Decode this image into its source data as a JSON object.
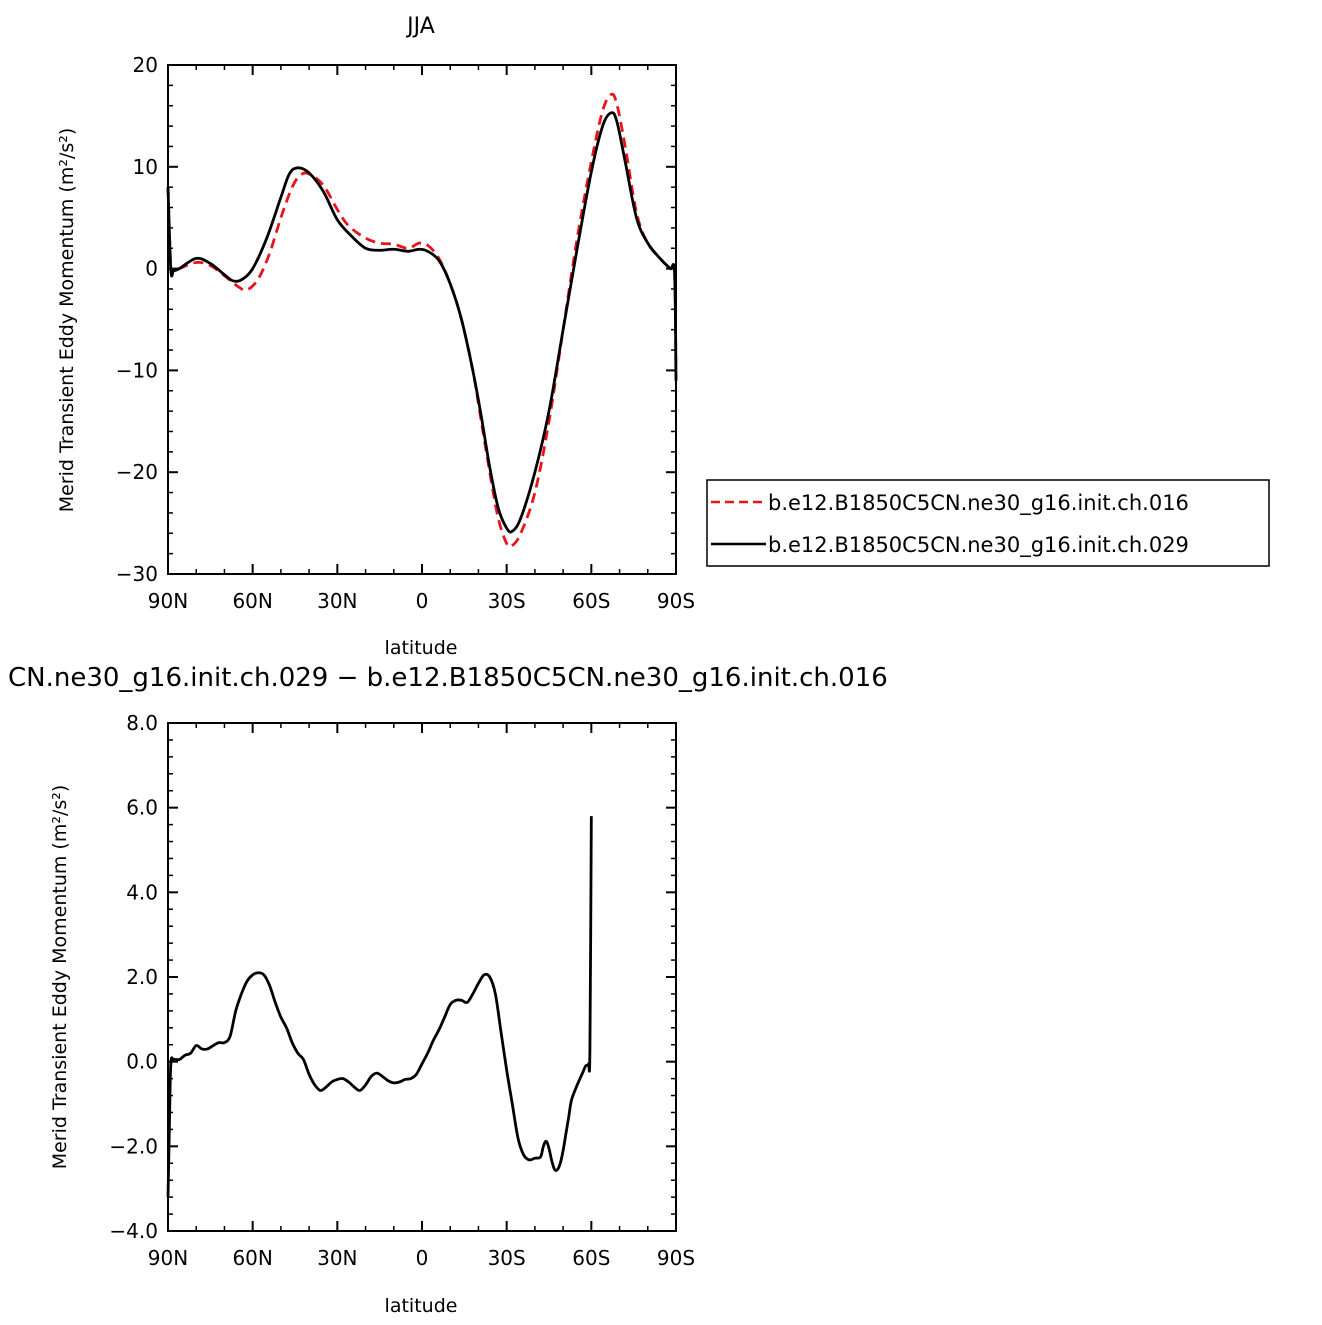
{
  "chart_data": [
    {
      "type": "line",
      "title": "JJA",
      "xlabel": "latitude",
      "ylabel": "Merid Transient Eddy Momentum (m²/s²)",
      "xlim": [
        90,
        -90
      ],
      "ylim": [
        -30,
        20
      ],
      "x_ticks": [
        90,
        60,
        30,
        0,
        -30,
        -60,
        -90
      ],
      "x_tick_labels": [
        "90N",
        "60N",
        "30N",
        "0",
        "30S",
        "60S",
        "90S"
      ],
      "y_ticks": [
        -30,
        -20,
        -10,
        0,
        10,
        20
      ],
      "y_tick_labels": [
        "−30",
        "−20",
        "−10",
        "0",
        "10",
        "20"
      ],
      "legend_position": "right",
      "series": [
        {
          "name": "b.e12.B1850C5CN.ne30_g16.init.ch.016",
          "color": "#e8141c",
          "dash": "dashed",
          "points": [
            [
              90,
              8
            ],
            [
              89,
              0.2
            ],
            [
              88,
              -0.2
            ],
            [
              86,
              0
            ],
            [
              80,
              0.6
            ],
            [
              75,
              0.3
            ],
            [
              70,
              -0.7
            ],
            [
              65,
              -1.8
            ],
            [
              62,
              -2.1
            ],
            [
              58,
              -1
            ],
            [
              54,
              1.5
            ],
            [
              50,
              5
            ],
            [
              46,
              8
            ],
            [
              43,
              9.2
            ],
            [
              40,
              9.3
            ],
            [
              35,
              8.2
            ],
            [
              30,
              5.8
            ],
            [
              26,
              4.2
            ],
            [
              20,
              3
            ],
            [
              15,
              2.5
            ],
            [
              10,
              2.4
            ],
            [
              5,
              2
            ],
            [
              1,
              2.5
            ],
            [
              -2,
              2.3
            ],
            [
              -6,
              1
            ],
            [
              -10,
              -1.5
            ],
            [
              -14,
              -5
            ],
            [
              -18,
              -10
            ],
            [
              -21,
              -15
            ],
            [
              -24,
              -20
            ],
            [
              -27,
              -24.5
            ],
            [
              -30,
              -27
            ],
            [
              -32,
              -27.2
            ],
            [
              -35,
              -26
            ],
            [
              -40,
              -22
            ],
            [
              -45,
              -15
            ],
            [
              -50,
              -6
            ],
            [
              -55,
              3
            ],
            [
              -60,
              10.5
            ],
            [
              -64,
              15.5
            ],
            [
              -67,
              17.1
            ],
            [
              -69,
              16.2
            ],
            [
              -72,
              12
            ],
            [
              -76,
              5.5
            ],
            [
              -80,
              2.5
            ],
            [
              -85,
              0.8
            ],
            [
              -88,
              0
            ],
            [
              -89.5,
              -0.5
            ],
            [
              -90,
              -11
            ]
          ]
        },
        {
          "name": "b.e12.B1850C5CN.ne30_g16.init.ch.029",
          "color": "#000000",
          "dash": "solid",
          "points": [
            [
              90,
              8
            ],
            [
              89,
              -0.1
            ],
            [
              88,
              -0.2
            ],
            [
              86,
              0
            ],
            [
              80,
              1
            ],
            [
              75,
              0.5
            ],
            [
              70,
              -0.6
            ],
            [
              67,
              -1.2
            ],
            [
              64,
              -1.1
            ],
            [
              60,
              0
            ],
            [
              55,
              3
            ],
            [
              50,
              7
            ],
            [
              47,
              9.3
            ],
            [
              44,
              9.9
            ],
            [
              40,
              9.4
            ],
            [
              35,
              7.6
            ],
            [
              30,
              4.8
            ],
            [
              25,
              3.2
            ],
            [
              20,
              2
            ],
            [
              15,
              1.8
            ],
            [
              10,
              1.9
            ],
            [
              5,
              1.7
            ],
            [
              1,
              1.9
            ],
            [
              -2,
              1.7
            ],
            [
              -6,
              0.8
            ],
            [
              -10,
              -1.5
            ],
            [
              -14,
              -5
            ],
            [
              -18,
              -10
            ],
            [
              -21,
              -14.5
            ],
            [
              -24,
              -19.5
            ],
            [
              -27,
              -23.5
            ],
            [
              -30,
              -25.5
            ],
            [
              -32,
              -25.8
            ],
            [
              -35,
              -24.5
            ],
            [
              -40,
              -20
            ],
            [
              -45,
              -14
            ],
            [
              -50,
              -6
            ],
            [
              -55,
              2
            ],
            [
              -60,
              9.5
            ],
            [
              -64,
              14
            ],
            [
              -67,
              15.3
            ],
            [
              -69,
              14.5
            ],
            [
              -72,
              10.5
            ],
            [
              -76,
              5
            ],
            [
              -80,
              2.5
            ],
            [
              -85,
              0.8
            ],
            [
              -88,
              0
            ],
            [
              -89.5,
              -0.5
            ],
            [
              -90,
              -11
            ]
          ]
        }
      ]
    },
    {
      "type": "line",
      "title": "CN.ne30_g16.init.ch.029 − b.e12.B1850C5CN.ne30_g16.init.ch.016",
      "xlabel": "latitude",
      "ylabel": "Merid Transient Eddy Momentum (m²/s²)",
      "xlim": [
        90,
        -90
      ],
      "ylim": [
        -4,
        8
      ],
      "x_ticks": [
        90,
        60,
        30,
        0,
        -30,
        -60,
        -90
      ],
      "x_tick_labels": [
        "90N",
        "60N",
        "30N",
        "0",
        "30S",
        "60S",
        "90S"
      ],
      "y_ticks": [
        -4,
        -2,
        0,
        2,
        4,
        6,
        8
      ],
      "y_tick_labels": [
        "−4.0",
        "−2.0",
        "0.0",
        "2.0",
        "4.0",
        "6.0",
        "8.0"
      ],
      "series": [
        {
          "color": "#000000",
          "dash": "solid",
          "points": [
            [
              90,
              -3.2
            ],
            [
              89.5,
              -1.5
            ],
            [
              89,
              -0.05
            ],
            [
              88,
              0.05
            ],
            [
              86,
              0.05
            ],
            [
              84,
              0.15
            ],
            [
              82,
              0.2
            ],
            [
              80,
              0.38
            ],
            [
              78,
              0.3
            ],
            [
              76,
              0.3
            ],
            [
              74,
              0.38
            ],
            [
              72,
              0.45
            ],
            [
              70,
              0.45
            ],
            [
              68,
              0.6
            ],
            [
              66,
              1.2
            ],
            [
              64,
              1.6
            ],
            [
              62,
              1.9
            ],
            [
              60,
              2.05
            ],
            [
              58,
              2.1
            ],
            [
              56,
              2.05
            ],
            [
              54,
              1.8
            ],
            [
              52,
              1.4
            ],
            [
              50,
              1.05
            ],
            [
              48,
              0.8
            ],
            [
              46,
              0.45
            ],
            [
              44,
              0.2
            ],
            [
              42,
              0.05
            ],
            [
              40,
              -0.3
            ],
            [
              38,
              -0.55
            ],
            [
              36,
              -0.68
            ],
            [
              34,
              -0.6
            ],
            [
              32,
              -0.48
            ],
            [
              30,
              -0.42
            ],
            [
              28,
              -0.4
            ],
            [
              26,
              -0.48
            ],
            [
              24,
              -0.6
            ],
            [
              22,
              -0.68
            ],
            [
              20,
              -0.55
            ],
            [
              18,
              -0.35
            ],
            [
              16,
              -0.27
            ],
            [
              14,
              -0.35
            ],
            [
              12,
              -0.45
            ],
            [
              10,
              -0.5
            ],
            [
              8,
              -0.48
            ],
            [
              6,
              -0.42
            ],
            [
              4,
              -0.4
            ],
            [
              2,
              -0.3
            ],
            [
              0,
              -0.05
            ],
            [
              -2,
              0.2
            ],
            [
              -4,
              0.5
            ],
            [
              -6,
              0.75
            ],
            [
              -8,
              1.05
            ],
            [
              -10,
              1.35
            ],
            [
              -12,
              1.45
            ],
            [
              -14,
              1.45
            ],
            [
              -16,
              1.4
            ],
            [
              -18,
              1.6
            ],
            [
              -20,
              1.85
            ],
            [
              -22,
              2.05
            ],
            [
              -24,
              2.0
            ],
            [
              -26,
              1.6
            ],
            [
              -28,
              0.7
            ],
            [
              -30,
              -0.2
            ],
            [
              -32,
              -1.0
            ],
            [
              -34,
              -1.8
            ],
            [
              -36,
              -2.2
            ],
            [
              -38,
              -2.32
            ],
            [
              -40,
              -2.28
            ],
            [
              -42,
              -2.25
            ],
            [
              -43,
              -2.0
            ],
            [
              -44,
              -1.88
            ],
            [
              -45,
              -2.05
            ],
            [
              -46,
              -2.35
            ],
            [
              -47,
              -2.55
            ],
            [
              -48,
              -2.55
            ],
            [
              -49,
              -2.4
            ],
            [
              -50,
              -2.1
            ],
            [
              -51,
              -1.7
            ],
            [
              -52,
              -1.3
            ],
            [
              -53,
              -0.9
            ],
            [
              -55,
              -0.55
            ],
            [
              -57,
              -0.25
            ],
            [
              -58,
              -0.1
            ],
            [
              -59,
              -0.05
            ],
            [
              -59.5,
              0.3
            ],
            [
              -60,
              5.8
            ]
          ]
        }
      ]
    }
  ]
}
